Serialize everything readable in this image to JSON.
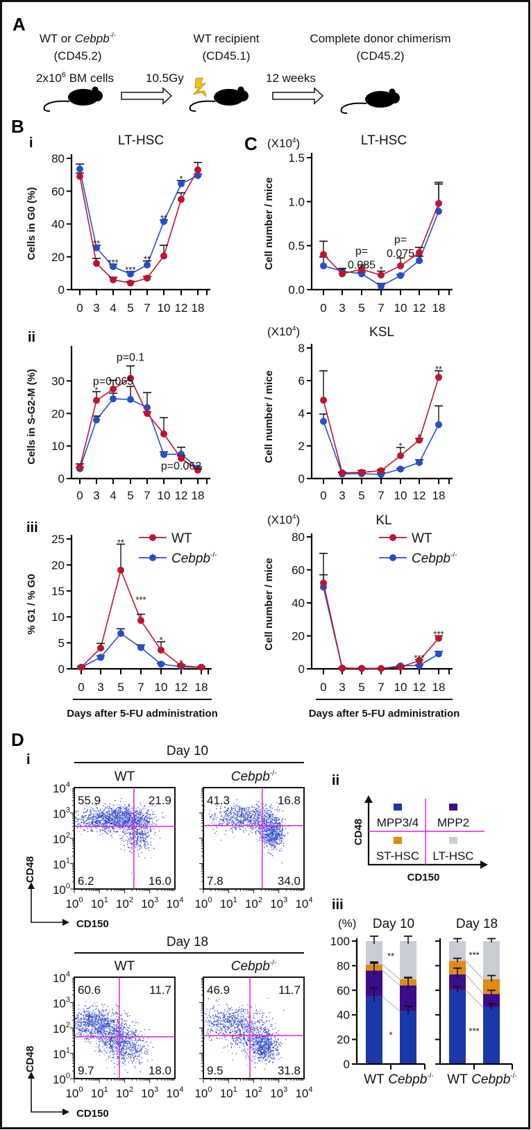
{
  "colors": {
    "wt": "#c0132e",
    "ko": "#2350c8",
    "gate": "#e020d8",
    "mpp34": "#1a38aa",
    "mpp2": "#3b0c8c",
    "st_hsc": "#e08a12",
    "lt_hsc": "#c9cdd3",
    "lightning": "#f2c21a"
  },
  "panel_a": {
    "label": "A",
    "donor": {
      "prefix": "WT or ",
      "italic": "Cebpb",
      "sup": "-/-",
      "line2": "(CD45.2)"
    },
    "recipient": {
      "line1": "WT recipient",
      "line2": "(CD45.1)"
    },
    "result": {
      "line1": "Complete donor chimerism",
      "line2": "(CD45.2)"
    },
    "cells": {
      "prefix": "2x10",
      "sup": "6",
      "suffix": " BM cells"
    },
    "irradiation": "10.5Gy",
    "duration": "12 weeks",
    "icons": [
      "mouse-icon",
      "arrow-right-icon",
      "lightning-icon"
    ]
  },
  "panel_labels": {
    "B": "B",
    "C": "C",
    "D": "D"
  },
  "chart_data": [
    {
      "id": "B-i",
      "type": "line",
      "sub": "i",
      "title": "LT-HSC",
      "ylabel": "Cells in G0 (%)",
      "ylim": [
        0,
        80
      ],
      "yticks": [
        0,
        20,
        40,
        60,
        80
      ],
      "ytick_labels": [
        "0",
        "20",
        "40",
        "60",
        "80"
      ],
      "x": [
        "0",
        "3",
        "4",
        "5",
        "7",
        "10",
        "12",
        "18"
      ],
      "series": [
        {
          "values": [
            69,
            16,
            6,
            4,
            7,
            20.5,
            55,
            73
          ],
          "err": [
            71,
            19,
            7.5,
            5,
            8,
            27,
            59,
            77.5
          ]
        },
        {
          "values": [
            73.5,
            25.5,
            14,
            9.5,
            15,
            41.5,
            64.5,
            69.5
          ],
          "err": [
            76.5,
            27,
            15.5,
            11,
            17.5,
            42.5,
            66.5,
            70.5
          ]
        }
      ],
      "annotations": [
        {
          "x": "3",
          "text": "**"
        },
        {
          "x": "4",
          "text": "***"
        },
        {
          "x": "5",
          "text": "***"
        },
        {
          "x": "7",
          "text": "**"
        },
        {
          "x": "10",
          "text": "**"
        },
        {
          "x": "12",
          "text": "*"
        }
      ]
    },
    {
      "id": "B-ii",
      "type": "line",
      "sub": "ii",
      "ylabel": "Cells in S-G2-M (%)",
      "ylim": [
        0,
        35
      ],
      "yticks": [
        0,
        10,
        20,
        30
      ],
      "ytick_labels": [
        "0",
        "10",
        "20",
        "30"
      ],
      "x": [
        "0",
        "3",
        "4",
        "5",
        "7",
        "10",
        "12",
        "18"
      ],
      "series": [
        {
          "values": [
            3.5,
            24,
            27.5,
            30.8,
            20,
            13.7,
            6.2,
            2.6
          ],
          "err": [
            4.5,
            26.7,
            30.2,
            34.6,
            20.5,
            18.7,
            7,
            3
          ]
        },
        {
          "values": [
            3,
            18,
            24.5,
            24.3,
            21.8,
            7.4,
            7.5,
            3.2
          ],
          "err": [
            3.5,
            19.2,
            26.2,
            28.3,
            26.4,
            8.2,
            9.6,
            3.6
          ]
        }
      ],
      "annotations": [
        {
          "x": "3",
          "text": "*"
        },
        {
          "x": "4",
          "y": 28.8,
          "lines": [
            "p=0.065"
          ]
        },
        {
          "x": "5",
          "y": 36.2,
          "lines": [
            "p=0.1"
          ]
        },
        {
          "x": "12",
          "y": 2.8,
          "lines": [
            "p=0.062"
          ]
        }
      ]
    },
    {
      "id": "B-iii",
      "type": "line",
      "sub": "iii",
      "ylabel": "% G1 / % G0",
      "xlabel": "Days after 5-FU administration",
      "ylim": [
        0,
        25
      ],
      "yticks": [
        0,
        5,
        10,
        15,
        20,
        25
      ],
      "ytick_labels": [
        "0",
        "5",
        "10",
        "15",
        "20",
        "25"
      ],
      "x": [
        "0",
        "3",
        "5",
        "7",
        "10",
        "12",
        "18"
      ],
      "series": [
        {
          "name": "WT",
          "values": [
            0.3,
            4,
            19,
            9.3,
            3.6,
            0.6,
            0.3
          ],
          "err": [
            0.5,
            4.9,
            24,
            10.5,
            5.2,
            0.8,
            0.4
          ]
        },
        {
          "name": "Cebpb",
          "name_sup": "-/-",
          "values": [
            0.3,
            2.2,
            6.8,
            4.1,
            0.9,
            0.4,
            0.3
          ],
          "err": [
            0.4,
            2.5,
            7.7,
            4.6,
            1.1,
            0.5,
            0.4
          ]
        }
      ],
      "legend": "top-right",
      "annotations": [
        {
          "x": "5",
          "text": "**"
        },
        {
          "x": "7",
          "text": "***",
          "y": 13.5
        },
        {
          "x": "10",
          "text": "*"
        },
        {
          "x": "12",
          "text": "*"
        }
      ]
    },
    {
      "id": "C-lt",
      "type": "line",
      "panel": "C",
      "title": "LT-HSC",
      "multiplier": {
        "base": "(X10",
        "sup": "4",
        "close": ")"
      },
      "ylabel": "Cell number / mice",
      "ylim": [
        0,
        1.5
      ],
      "yticks": [
        0,
        0.5,
        1,
        1.5
      ],
      "ytick_labels": [
        "0.0",
        "0.5",
        "1.0",
        "1.5"
      ],
      "x": [
        "0",
        "3",
        "5",
        "7",
        "10",
        "12",
        "18"
      ],
      "series": [
        {
          "values": [
            0.4,
            0.18,
            0.23,
            0.165,
            0.27,
            0.42,
            0.98
          ],
          "err": [
            0.55,
            0.24,
            0.28,
            0.21,
            0.36,
            0.48,
            1.22
          ]
        },
        {
          "values": [
            0.27,
            0.21,
            0.18,
            0.04,
            0.16,
            0.33,
            0.89
          ],
          "err": [
            0.37,
            0.24,
            0.2,
            0.07,
            0.17,
            0.38,
            1.2
          ]
        }
      ],
      "annotations": [
        {
          "x": "5",
          "y": 0.4,
          "lines": [
            "p=",
            "0.085"
          ]
        },
        {
          "x": "7",
          "text": "*"
        },
        {
          "x": "10",
          "y": 0.53,
          "lines": [
            "p=",
            "0.075"
          ]
        }
      ]
    },
    {
      "id": "C-ksl",
      "type": "line",
      "title": "KSL",
      "multiplier": {
        "base": "(X10",
        "sup": "4",
        "close": ")"
      },
      "ylabel": "Cell number / mice",
      "ylim": [
        0,
        8
      ],
      "yticks": [
        0,
        2,
        4,
        6,
        8
      ],
      "ytick_labels": [
        "0",
        "2",
        "4",
        "6",
        "8"
      ],
      "x": [
        "0",
        "3",
        "5",
        "7",
        "10",
        "12",
        "18"
      ],
      "series": [
        {
          "values": [
            4.8,
            0.35,
            0.38,
            0.48,
            1.4,
            2.35,
            6.2
          ],
          "err": [
            6.6,
            0.4,
            0.5,
            0.55,
            1.9,
            2.45,
            6.6
          ]
        },
        {
          "values": [
            3.5,
            0.28,
            0.3,
            0.25,
            0.58,
            0.98,
            3.3
          ],
          "err": [
            3.95,
            0.35,
            0.35,
            0.35,
            0.62,
            1.15,
            4.45
          ]
        }
      ],
      "annotations": [
        {
          "x": "10",
          "text": "*"
        },
        {
          "x": "12",
          "text": "*"
        },
        {
          "x": "18",
          "text": "**"
        }
      ]
    },
    {
      "id": "C-kl",
      "type": "line",
      "title": "KL",
      "multiplier": {
        "base": "(X10",
        "sup": "4",
        "close": ")"
      },
      "ylabel": "Cell number / mice",
      "xlabel": "Days after 5-FU administration",
      "ylim": [
        0,
        80
      ],
      "yticks": [
        0,
        20,
        40,
        60,
        80
      ],
      "ytick_labels": [
        "0",
        "20",
        "40",
        "60",
        "80"
      ],
      "x": [
        "0",
        "3",
        "5",
        "7",
        "10",
        "12",
        "18"
      ],
      "series": [
        {
          "name": "WT",
          "values": [
            52,
            0.5,
            0.3,
            0.2,
            1,
            5,
            18.5
          ],
          "err": [
            70,
            0.6,
            0.4,
            0.3,
            1.2,
            5.5,
            20
          ]
        },
        {
          "name": "Cebpb",
          "name_sup": "-/-",
          "values": [
            49.5,
            0.3,
            0.3,
            0.2,
            1.8,
            2,
            9
          ],
          "err": [
            57,
            0.4,
            0.4,
            0.3,
            2.1,
            2.4,
            10.5
          ]
        }
      ],
      "legend": "top-right",
      "annotations": [
        {
          "x": "12",
          "text": "***"
        },
        {
          "x": "18",
          "text": "***"
        }
      ]
    },
    {
      "id": "D-iii-10",
      "type": "bar",
      "stacked": true,
      "sub": "iii",
      "title": "Day 10",
      "ylabel": "(%)",
      "ylim": [
        0,
        100
      ],
      "yticks": [
        0,
        20,
        40,
        60,
        80,
        100
      ],
      "ytick_labels": [
        "0",
        "20",
        "40",
        "60",
        "80",
        "100"
      ],
      "categories": [
        {
          "label": "WT"
        },
        {
          "label": "Cebpb",
          "sup": "-/-"
        }
      ],
      "series": [
        {
          "name": "MPP3/4",
          "values": [
            55,
            43
          ],
          "err": [
            7,
            4
          ]
        },
        {
          "name": "MPP2",
          "values": [
            21,
            21
          ],
          "err": [
            6,
            6
          ]
        },
        {
          "name": "ST-HSC",
          "values": [
            5,
            5
          ],
          "err": [
            2,
            1.5
          ]
        },
        {
          "name": "LT-HSC",
          "values": [
            19,
            31
          ],
          "err": [
            4,
            4
          ]
        }
      ],
      "annotations": [
        {
          "text": "**",
          "y": 88
        },
        {
          "text": "*",
          "y": 24
        }
      ]
    },
    {
      "id": "D-iii-18",
      "type": "bar",
      "stacked": true,
      "title": "Day 18",
      "ylim": [
        0,
        100
      ],
      "yticks": [
        0,
        20,
        40,
        60,
        80,
        100
      ],
      "categories": [
        {
          "label": "WT"
        },
        {
          "label": "Cebpb",
          "sup": "-/-"
        }
      ],
      "series": [
        {
          "name": "MPP3/4",
          "values": [
            60,
            46
          ],
          "err": [
            3,
            3
          ]
        },
        {
          "name": "MPP2",
          "values": [
            13,
            11
          ],
          "err": [
            5,
            3
          ]
        },
        {
          "name": "ST-HSC",
          "values": [
            11,
            12
          ],
          "err": [
            2,
            3
          ]
        },
        {
          "name": "LT-HSC",
          "values": [
            16,
            31
          ],
          "err": [
            2,
            2
          ]
        }
      ],
      "annotations": [
        {
          "text": "***",
          "y": 89
        },
        {
          "text": "***",
          "y": 27
        }
      ]
    }
  ],
  "flow_cytometry": {
    "sub": "i",
    "x_label": "CD150",
    "y_label": "CD48",
    "tick_base": "10",
    "tick_exps": [
      "0",
      "1",
      "2",
      "3",
      "4"
    ],
    "days": [
      {
        "title": "Day 10",
        "plots": [
          {
            "genotype": "WT",
            "quadrants": {
              "ul": "55.9",
              "ur": "21.9",
              "ll": "6.2",
              "lr": "16.0"
            }
          },
          {
            "genotype": "Cebpb",
            "genotype_sup": "-/-",
            "quadrants": {
              "ul": "41.3",
              "ur": "16.8",
              "ll": "7.8",
              "lr": "34.0"
            }
          }
        ]
      },
      {
        "title": "Day 18",
        "plots": [
          {
            "genotype": "WT",
            "quadrants": {
              "ul": "60.6",
              "ur": "11.7",
              "ll": "9.7",
              "lr": "18.0"
            }
          },
          {
            "genotype": "Cebpb",
            "genotype_sup": "-/-",
            "quadrants": {
              "ul": "46.9",
              "ur": "11.7",
              "ll": "9.5",
              "lr": "31.8"
            }
          }
        ]
      }
    ]
  },
  "gate_schematic": {
    "sub": "ii",
    "x_label": "CD150",
    "y_label": "CD48",
    "quadrants": [
      {
        "pos": "upper-left",
        "label": "MPP3/4",
        "color": "#1a38aa"
      },
      {
        "pos": "upper-right",
        "label": "MPP2",
        "color": "#3b0c8c"
      },
      {
        "pos": "lower-left",
        "label": "ST-HSC",
        "color": "#e08a12"
      },
      {
        "pos": "lower-right",
        "label": "LT-HSC",
        "color": "#c9cdd3"
      }
    ]
  }
}
